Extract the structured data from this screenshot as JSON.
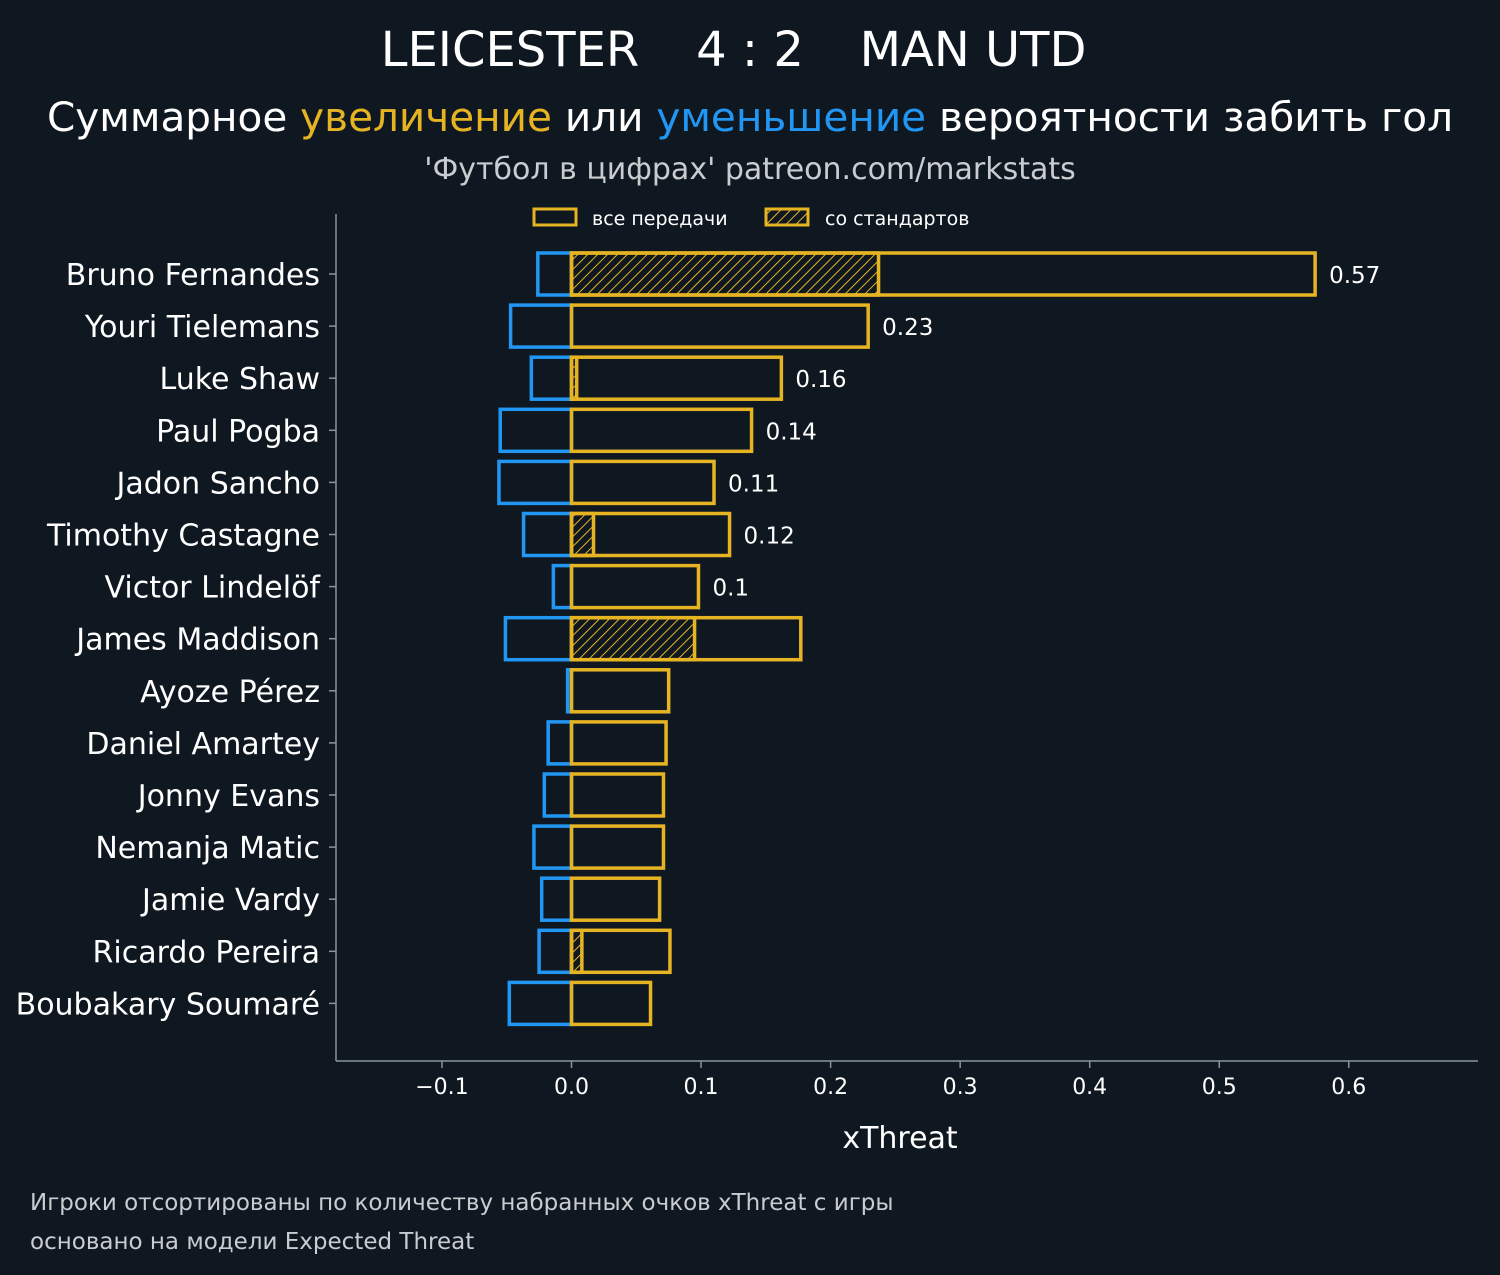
{
  "header": {
    "home_team": "LEICESTER",
    "score": "4 : 2",
    "away_team": "MAN UTD"
  },
  "subtitle": {
    "part1": "Суммарное ",
    "increase": "увеличение",
    "part2": " или ",
    "decrease": "уменьшение",
    "part3": " вероятности забить гол"
  },
  "source": "'Футбол в цифрах' patreon.com/markstats",
  "legend": {
    "all_passes": "все передачи",
    "set_pieces": "со стандартов"
  },
  "footnote": {
    "line1": "Игроки отсортированы по количеству набранных очков xThreat с игры",
    "line2": "основано на модели Expected Threat"
  },
  "colors": {
    "background": "#0f1821",
    "positive": "#e6b422",
    "negative": "#2196f3",
    "axis": "#8a949c"
  },
  "chart_data": {
    "type": "bar",
    "orientation": "horizontal",
    "xlabel": "xThreat",
    "xlim": [
      -0.18,
      0.7
    ],
    "xticks": [
      -0.1,
      0.0,
      0.1,
      0.2,
      0.3,
      0.4,
      0.5,
      0.6
    ],
    "xtick_labels": [
      "−0.1",
      "0.0",
      "0.1",
      "0.2",
      "0.3",
      "0.4",
      "0.5",
      "0.6"
    ],
    "categories": [
      "Bruno Fernandes",
      "Youri Tielemans",
      "Luke Shaw",
      "Paul Pogba",
      "Jadon Sancho",
      "Timothy Castagne",
      "Victor Lindelöf",
      "James Maddison",
      "Ayoze Pérez",
      "Daniel Amartey",
      "Jonny Evans",
      "Nemanja Matic",
      "Jamie Vardy",
      "Ricardo Pereira",
      "Boubakary Soumaré"
    ],
    "series": [
      {
        "name": "positive_all",
        "values": [
          0.574,
          0.229,
          0.162,
          0.139,
          0.11,
          0.122,
          0.098,
          0.177,
          0.075,
          0.073,
          0.071,
          0.071,
          0.068,
          0.076,
          0.061
        ]
      },
      {
        "name": "positive_set_pieces",
        "values": [
          0.237,
          0.0,
          0.004,
          0.0,
          0.0,
          0.017,
          0.0,
          0.095,
          0.0,
          0.0,
          0.0,
          0.0,
          0.0,
          0.008,
          0.0
        ]
      },
      {
        "name": "negative_all",
        "values": [
          -0.026,
          -0.047,
          -0.031,
          -0.055,
          -0.056,
          -0.037,
          -0.014,
          -0.051,
          -0.003,
          -0.018,
          -0.021,
          -0.029,
          -0.023,
          -0.025,
          -0.048
        ]
      }
    ],
    "value_labels": [
      "0.57",
      "0.23",
      "0.16",
      "0.14",
      "0.11",
      "0.12",
      "0.1",
      "",
      "",
      "",
      "",
      "",
      "",
      "",
      ""
    ]
  }
}
